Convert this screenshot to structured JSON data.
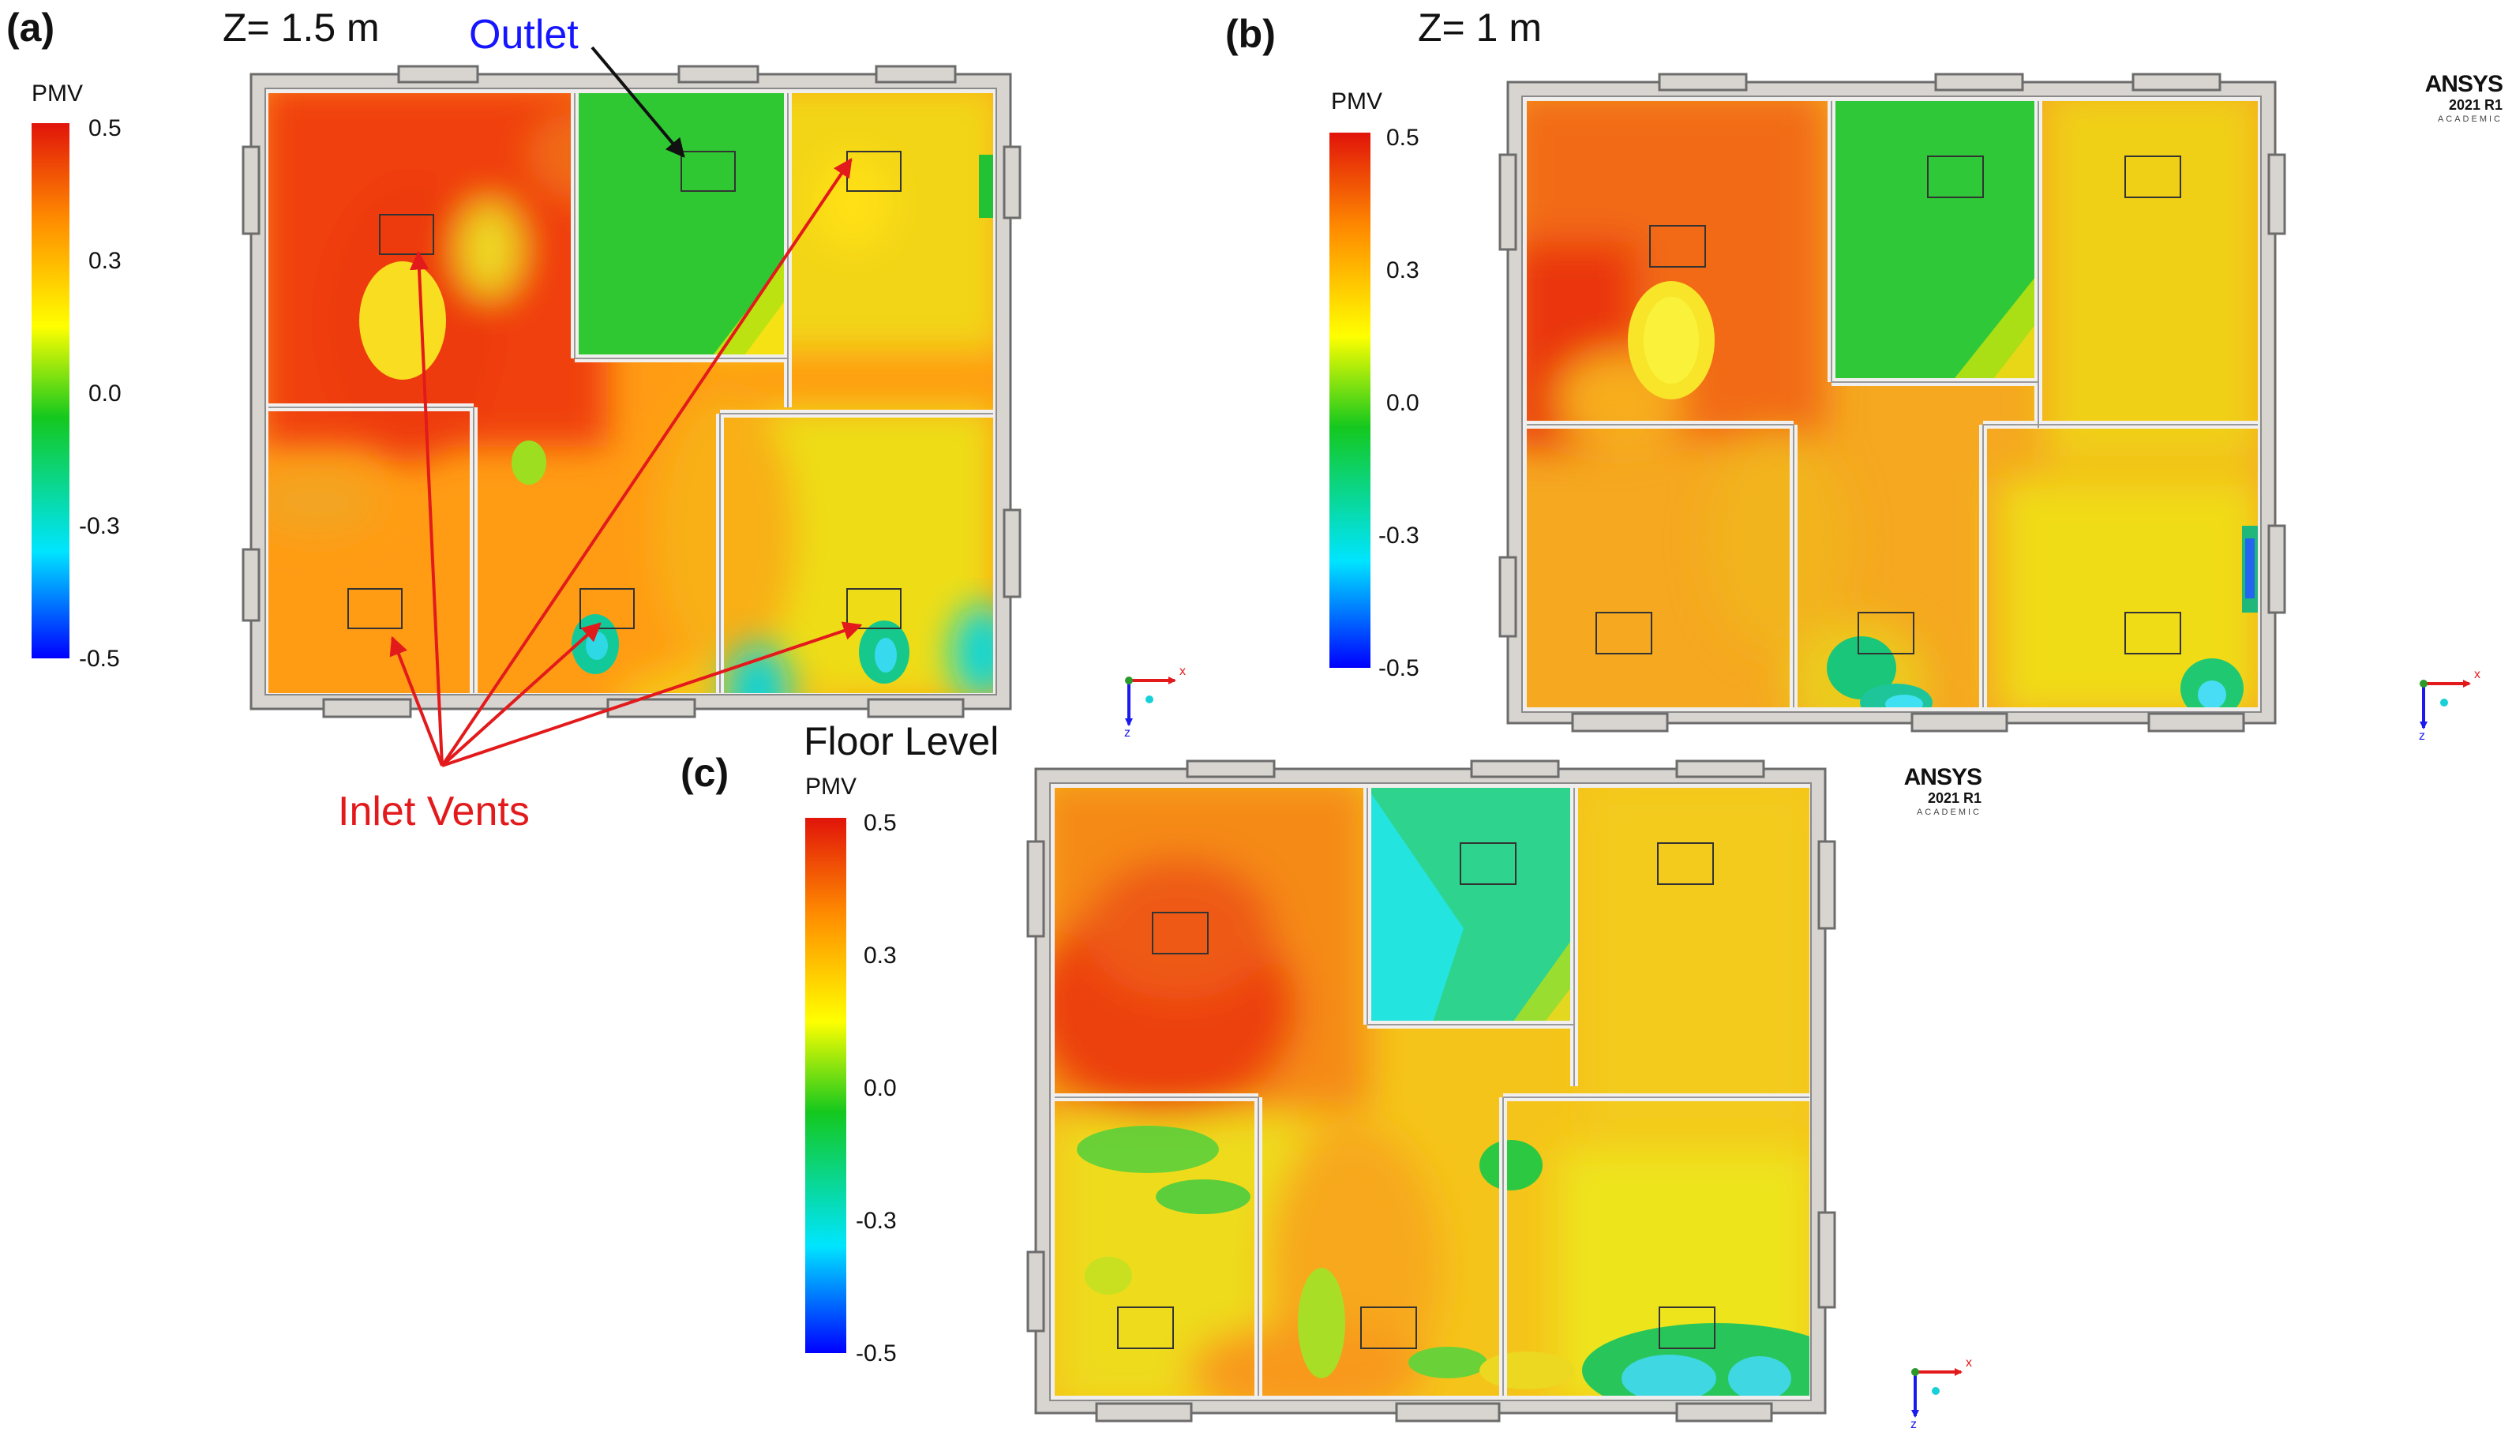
{
  "panels": [
    {
      "id": "a",
      "label": "(a)",
      "title": "Z= 1.5 m",
      "colorbar": {
        "title": "PMV",
        "ticks": [
          "0.5",
          "0.3",
          "0.0",
          "-0.3",
          "-0.5"
        ]
      }
    },
    {
      "id": "b",
      "label": "(b)",
      "title": "Z= 1 m",
      "colorbar": {
        "title": "PMV",
        "ticks": [
          "0.5",
          "0.3",
          "0.0",
          "-0.3",
          "-0.5"
        ]
      }
    },
    {
      "id": "c",
      "label": "(c)",
      "title": "Floor Level",
      "colorbar": {
        "title": "PMV",
        "ticks": [
          "0.5",
          "0.3",
          "0.0",
          "-0.3",
          "-0.5"
        ]
      }
    }
  ],
  "annotations": {
    "outlet": "Outlet",
    "inlet": "Inlet Vents"
  },
  "watermark": {
    "brand": "ANSYS",
    "version": "2021 R1",
    "edition": "ACADEMIC"
  },
  "axes_triad": {
    "x": "x",
    "z": "z"
  },
  "colors": {
    "colorscale": [
      "#0000ff",
      "#00e5ff",
      "#14c81e",
      "#ffff00",
      "#ff6a00",
      "#e1140a"
    ],
    "outlet_text": "#1515ff",
    "inlet_text": "#e31a1c",
    "arrow_red": "#e31a1c",
    "wall": "#d8d4d0"
  }
}
